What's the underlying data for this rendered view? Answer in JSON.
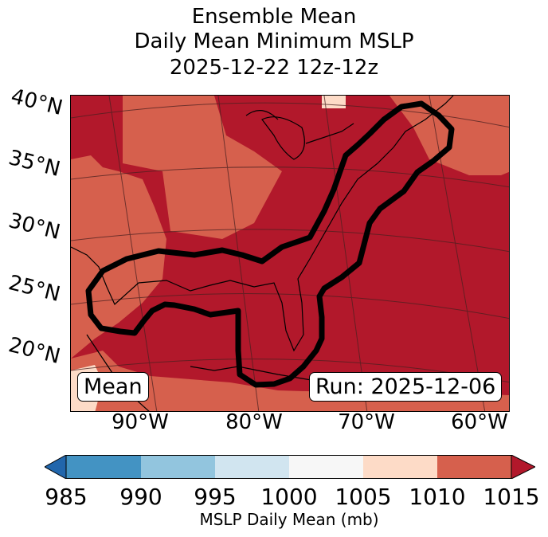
{
  "title": {
    "line1": "Ensemble Mean",
    "line2": "Daily Mean Minimum MSLP",
    "line3": "2025-12-22 12z-12z"
  },
  "lat_labels": [
    "40°N",
    "35°N",
    "30°N",
    "25°N",
    "20°N"
  ],
  "lon_labels": [
    "90°W",
    "80°W",
    "70°W",
    "60°W"
  ],
  "mean_label": "Mean",
  "run_label": "Run: 2025-12-06",
  "colorbar": {
    "label": "MSLP Daily Mean (mb)",
    "ticks": [
      "985",
      "990",
      "995",
      "1000",
      "1005",
      "1010",
      "1015"
    ],
    "colors": [
      "#2166ac",
      "#4393c3",
      "#92c5de",
      "#d1e5f0",
      "#f7f7f7",
      "#fddbc7",
      "#d6604d",
      "#b2182b"
    ],
    "extend": "both"
  },
  "map": {
    "fill_high": "#b2182b",
    "fill_mid": "#d6604d",
    "fill_low": "#fddbc7",
    "contour_color": "#000000"
  }
}
